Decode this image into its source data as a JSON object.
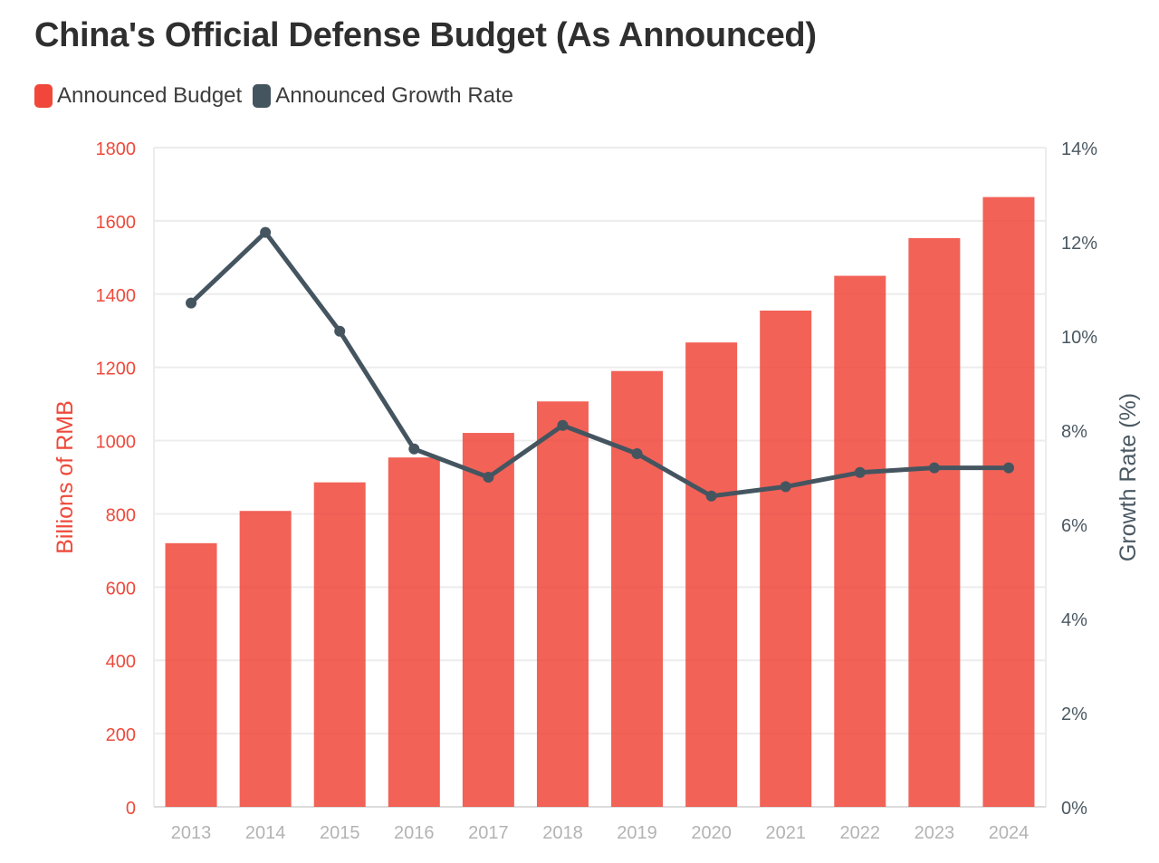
{
  "title": "China's Official Defense Budget (As Announced)",
  "legend": [
    {
      "label": "Announced Budget",
      "color": "#f0473a"
    },
    {
      "label": "Announced Growth Rate",
      "color": "#455560"
    }
  ],
  "chart_data": {
    "type": "bar",
    "title": "China's Official Defense Budget (As Announced)",
    "categories": [
      "2013",
      "2014",
      "2015",
      "2016",
      "2017",
      "2018",
      "2019",
      "2020",
      "2021",
      "2022",
      "2023",
      "2024"
    ],
    "series": [
      {
        "name": "Announced Budget",
        "type": "bar",
        "axis": "left",
        "color": "#f0473a",
        "values": [
          720,
          808,
          886,
          954,
          1021,
          1107,
          1190,
          1268,
          1355,
          1450,
          1553,
          1665
        ]
      },
      {
        "name": "Announced Growth Rate",
        "type": "line",
        "axis": "right",
        "color": "#455560",
        "values": [
          10.7,
          12.2,
          10.1,
          7.6,
          7.0,
          8.1,
          7.5,
          6.6,
          6.8,
          7.1,
          7.2,
          7.2
        ]
      }
    ],
    "ylabel": "Billions of RMB",
    "ylim": [
      0,
      1800
    ],
    "yticks": [
      "0",
      "200",
      "400",
      "600",
      "800",
      "1000",
      "1200",
      "1400",
      "1600",
      "1800"
    ],
    "y2label": "Growth Rate (%)",
    "y2lim": [
      0,
      14
    ],
    "y2ticks": [
      "0%",
      "2%",
      "4%",
      "6%",
      "8%",
      "10%",
      "12%",
      "14%"
    ],
    "grid": true,
    "legend_position": "top-left",
    "left_axis_color": "#ee4a3b",
    "right_axis_color": "#4a5862",
    "tick_color": "#b3b3b3",
    "grid_color": "#ececec"
  }
}
